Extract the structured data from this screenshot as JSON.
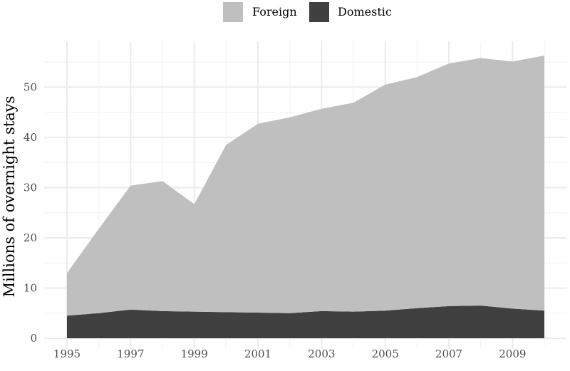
{
  "chart_data": {
    "type": "area",
    "stacked": true,
    "x": [
      1995,
      1996,
      1997,
      1998,
      1999,
      2000,
      2001,
      2002,
      2003,
      2004,
      2005,
      2006,
      2007,
      2008,
      2009,
      2010
    ],
    "series": [
      {
        "name": "Domestic",
        "color": "#404040",
        "values": [
          4.5,
          5.0,
          5.7,
          5.4,
          5.3,
          5.2,
          5.1,
          5.0,
          5.4,
          5.3,
          5.5,
          6.0,
          6.4,
          6.5,
          5.9,
          5.5
        ]
      },
      {
        "name": "Foreign",
        "color": "#bfbfbf",
        "values": [
          8.5,
          16.8,
          24.7,
          25.9,
          21.4,
          33.3,
          37.6,
          39.0,
          40.3,
          41.6,
          45.0,
          46.0,
          48.3,
          49.3,
          49.2,
          50.8
        ]
      }
    ],
    "ylabel": "Millions of overnight stays",
    "xlabel": "",
    "y_ticks": [
      0,
      10,
      20,
      30,
      40,
      50
    ],
    "x_tick_labels": [
      "1995",
      "1997",
      "1999",
      "2001",
      "2003",
      "2005",
      "2007",
      "2009"
    ],
    "xlim": [
      1995,
      2010
    ],
    "ylim": [
      0,
      58
    ],
    "grid": true,
    "legend": {
      "position": "top",
      "entries": [
        {
          "label": "Foreign",
          "color": "#bfbfbf"
        },
        {
          "label": "Domestic",
          "color": "#404040"
        }
      ]
    }
  }
}
